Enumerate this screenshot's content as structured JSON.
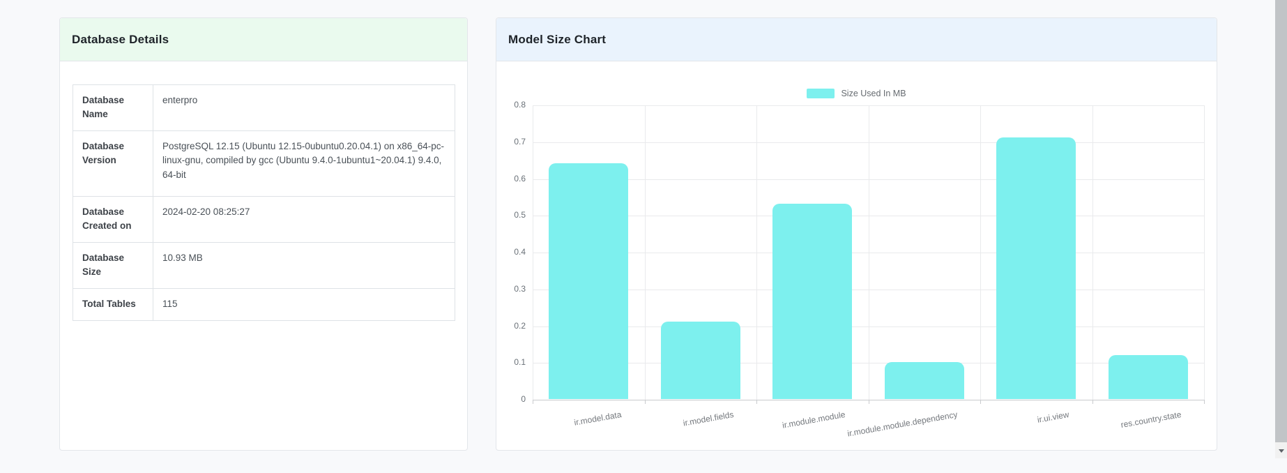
{
  "page": {
    "background": "#f8f9fb"
  },
  "database_details": {
    "title": "Database Details",
    "header_bg": "#eafaee",
    "rows": [
      {
        "label": "Database Name",
        "value": "enterpro"
      },
      {
        "label": "Database Version",
        "value": "PostgreSQL 12.15 (Ubuntu 12.15-0ubuntu0.20.04.1) on x86_64-pc-linux-gnu, compiled by gcc (Ubuntu 9.4.0-1ubuntu1~20.04.1) 9.4.0, 64-bit"
      },
      {
        "label": "Database Created on",
        "value": "2024-02-20 08:25:27"
      },
      {
        "label": "Database Size",
        "value": "10.93 MB"
      },
      {
        "label": "Total Tables",
        "value": "115"
      }
    ]
  },
  "model_size_chart": {
    "title": "Model Size Chart",
    "header_bg": "#eaf3fd"
  },
  "chart_data": {
    "type": "bar",
    "title": "Model Size Chart",
    "legend_label": "Size Used In MB",
    "legend_position": "top-center",
    "categories": [
      "ir.model.data",
      "ir.model.fields",
      "ir.module.module",
      "ir.module.module.dependency",
      "ir.ui.view",
      "res.country.state"
    ],
    "values": [
      0.64,
      0.21,
      0.53,
      0.1,
      0.71,
      0.12
    ],
    "xlabel": "",
    "ylabel": "",
    "ylim": [
      0,
      0.8
    ],
    "ytick_labels": [
      "0",
      "0.1",
      "0.2",
      "0.3",
      "0.4",
      "0.5",
      "0.6",
      "0.7",
      "0.8"
    ],
    "grid": true,
    "bar_color": "#7df0ee",
    "x_label_rotation_deg": -10
  }
}
